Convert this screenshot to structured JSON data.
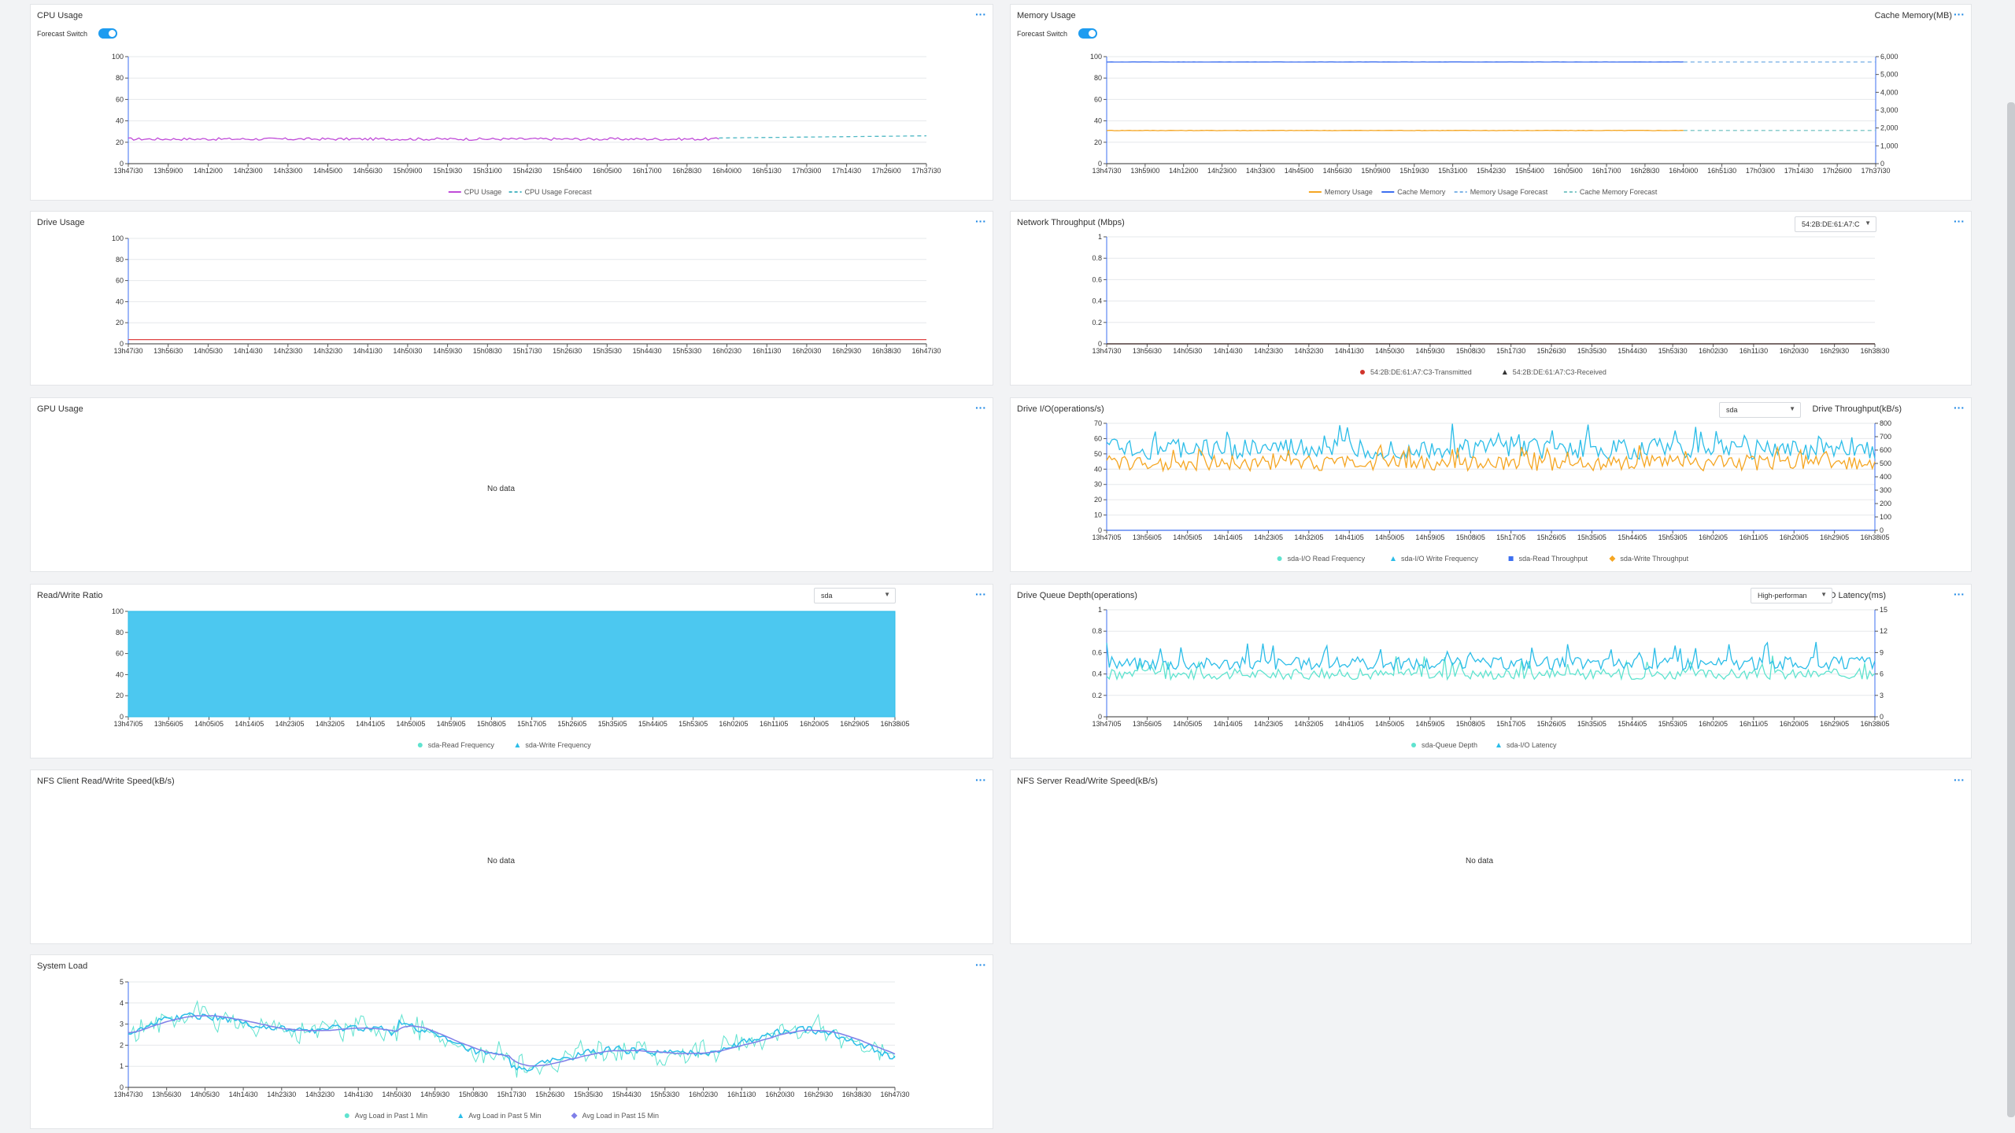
{
  "panels": {
    "cpu": {
      "title": "CPU Usage",
      "switch_label": "Forecast Switch",
      "legend": [
        "CPU Usage",
        "CPU Usage Forecast"
      ],
      "colors": [
        "#c04bd8",
        "#4fb8c4"
      ]
    },
    "memory": {
      "title": "Memory Usage",
      "switch_label": "Forecast Switch",
      "right_axis_title": "Cache Memory(MB)",
      "legend": [
        "Memory Usage",
        "Cache Memory",
        "Memory Usage Forecast",
        "Cache Memory Forecast"
      ],
      "colors": [
        "#f5a623",
        "#3d6ff0",
        "#7fb5e8",
        "#7fc7c7"
      ]
    },
    "drive": {
      "title": "Drive Usage"
    },
    "network": {
      "title": "Network Throughput (Mbps)",
      "select": "54:2B:DE:61:A7:C",
      "legend": [
        "54:2B:DE:61:A7:C3-Transmitted",
        "54:2B:DE:61:A7:C3-Received"
      ]
    },
    "gpu": {
      "title": "GPU Usage",
      "nodata": "No data"
    },
    "driveio": {
      "title": "Drive I/O(operations/s)",
      "select": "sda",
      "right_axis_title": "Drive Throughput(kB/s)",
      "legend": [
        "sda-I/O Read Frequency",
        "sda-I/O Write Frequency",
        "sda-Read Throughput",
        "sda-Write Throughput"
      ]
    },
    "rw": {
      "title": "Read/Write Ratio",
      "select": "sda",
      "legend": [
        "sda-Read Frequency",
        "sda-Write Frequency"
      ]
    },
    "queue": {
      "title": "Drive Queue Depth(operations)",
      "select": "High-performan",
      "right_axis_title": "I/O Latency(ms)",
      "legend": [
        "sda-Queue Depth",
        "sda-I/O Latency"
      ]
    },
    "nfsclient": {
      "title": "NFS Client Read/Write Speed(kB/s)",
      "nodata": "No data"
    },
    "nfsserver": {
      "title": "NFS Server Read/Write Speed(kB/s)",
      "nodata": "No data"
    },
    "sysload": {
      "title": "System Load",
      "legend": [
        "Avg Load in Past 1 Min",
        "Avg Load in Past 5 Min",
        "Avg Load in Past 15 Min"
      ]
    }
  },
  "more_label": "···",
  "chart_data": [
    {
      "id": "cpu",
      "type": "line",
      "xlabels": [
        "13h47i30",
        "13h59i00",
        "14h12i00",
        "14h23i00",
        "14h33i00",
        "14h45i00",
        "14h56i30",
        "15h09i00",
        "15h19i30",
        "15h31i00",
        "15h42i30",
        "15h54i00",
        "16h05i00",
        "16h17i00",
        "16h28i30",
        "16h40i00",
        "16h51i30",
        "17h03i00",
        "17h14i30",
        "17h26i00",
        "17h37i30"
      ],
      "yticks": [
        "0",
        "20",
        "40",
        "60",
        "80",
        "100"
      ],
      "ylim": [
        0,
        100
      ],
      "series": [
        {
          "name": "CPU Usage",
          "color": "#c04bd8",
          "level": 23,
          "noise": 1.2,
          "from": 0,
          "to": 0.74
        },
        {
          "name": "CPU Usage Forecast",
          "color": "#4fb8c4",
          "dash": true,
          "level": 24,
          "end": 26,
          "from": 0.74,
          "to": 1
        }
      ]
    },
    {
      "id": "memory",
      "type": "line",
      "xlabels": [
        "13h47i30",
        "13h59i00",
        "14h12i00",
        "14h23i00",
        "14h33i00",
        "14h45i00",
        "14h56i30",
        "15h09i00",
        "15h19i30",
        "15h31i00",
        "15h42i30",
        "15h54i00",
        "16h05i00",
        "16h17i00",
        "16h28i30",
        "16h40i00",
        "16h51i30",
        "17h03i00",
        "17h14i30",
        "17h26i00",
        "17h37i30"
      ],
      "yticks": [
        "0",
        "20",
        "40",
        "60",
        "80",
        "100"
      ],
      "ylim": [
        0,
        100
      ],
      "y2ticks": [
        "0",
        "1,000",
        "2,000",
        "3,000",
        "4,000",
        "5,000",
        "6,000"
      ],
      "y2lim": [
        0,
        6000
      ],
      "series": [
        {
          "name": "Memory Usage",
          "color": "#f5a623",
          "level": 31,
          "noise": 0.2,
          "from": 0,
          "to": 0.75
        },
        {
          "name": "Cache Memory",
          "color": "#3d6ff0",
          "level": 95,
          "noise": 0.1,
          "from": 0,
          "to": 0.75
        },
        {
          "name": "Memory Usage Forecast",
          "color": "#7fb5e8",
          "dash": true,
          "level": 95,
          "from": 0.75,
          "to": 1
        },
        {
          "name": "Cache Memory Forecast",
          "color": "#7fc7c7",
          "dash": true,
          "level": 31,
          "from": 0.75,
          "to": 1
        }
      ]
    },
    {
      "id": "drive",
      "type": "line",
      "xlabels": [
        "13h47i30",
        "13h56i30",
        "14h05i30",
        "14h14i30",
        "14h23i30",
        "14h32i30",
        "14h41i30",
        "14h50i30",
        "14h59i30",
        "15h08i30",
        "15h17i30",
        "15h26i30",
        "15h35i30",
        "15h44i30",
        "15h53i30",
        "16h02i30",
        "16h11i30",
        "16h20i30",
        "16h29i30",
        "16h38i30",
        "16h47i30"
      ],
      "yticks": [
        "0",
        "20",
        "40",
        "60",
        "80",
        "100"
      ],
      "ylim": [
        0,
        100
      ],
      "series": [
        {
          "name": "Drive Usage",
          "color": "#e04444",
          "level": 4,
          "noise": 0,
          "from": 0,
          "to": 1
        }
      ]
    },
    {
      "id": "network",
      "type": "line",
      "xlabels": [
        "13h47i30",
        "13h56i30",
        "14h05i30",
        "14h14i30",
        "14h23i30",
        "14h32i30",
        "14h41i30",
        "14h50i30",
        "14h59i30",
        "15h08i30",
        "15h17i30",
        "15h26i30",
        "15h35i30",
        "15h44i30",
        "15h53i30",
        "16h02i30",
        "16h11i30",
        "16h20i30",
        "16h29i30",
        "16h38i30"
      ],
      "yticks": [
        "0",
        "0.2",
        "0.4",
        "0.6",
        "0.8",
        "1"
      ],
      "ylim": [
        0,
        1
      ],
      "series": [
        {
          "name": "54:2B:DE:61:A7:C3-Transmitted",
          "color": "#d0342c",
          "level": 0,
          "noise": 0,
          "from": 0,
          "to": 1
        },
        {
          "name": "54:2B:DE:61:A7:C3-Received",
          "color": "#333333",
          "level": 0,
          "noise": 0,
          "from": 0,
          "to": 1
        }
      ]
    },
    {
      "id": "driveio",
      "type": "line",
      "xlabels": [
        "13h47i05",
        "13h56i05",
        "14h05i05",
        "14h14i05",
        "14h23i05",
        "14h32i05",
        "14h41i05",
        "14h50i05",
        "14h59i05",
        "15h08i05",
        "15h17i05",
        "15h26i05",
        "15h35i05",
        "15h44i05",
        "15h53i05",
        "16h02i05",
        "16h11i05",
        "16h20i05",
        "16h29i05",
        "16h38i05"
      ],
      "yticks": [
        "0",
        "10",
        "20",
        "30",
        "40",
        "50",
        "60",
        "70"
      ],
      "ylim": [
        0,
        70
      ],
      "y2ticks": [
        "0",
        "100",
        "200",
        "300",
        "400",
        "500",
        "600",
        "700",
        "800"
      ],
      "y2lim": [
        0,
        800
      ],
      "series": [
        {
          "name": "sda-I/O Read Frequency",
          "color": "#2bbde8",
          "level": 53,
          "noise": 7,
          "from": 0,
          "to": 1
        },
        {
          "name": "sda-Write Throughput",
          "color": "#f5a623",
          "level": 44,
          "noise": 5,
          "from": 0,
          "to": 1
        },
        {
          "name": "sda-Read Throughput",
          "color": "#3d6ff0",
          "level": 0,
          "noise": 0,
          "from": 0,
          "to": 1
        }
      ]
    },
    {
      "id": "rw",
      "type": "area",
      "xlabels": [
        "13h47i05",
        "13h56i05",
        "14h05i05",
        "14h14i05",
        "14h23i05",
        "14h32i05",
        "14h41i05",
        "14h50i05",
        "14h59i05",
        "15h08i05",
        "15h17i05",
        "15h26i05",
        "15h35i05",
        "15h44i05",
        "15h53i05",
        "16h02i05",
        "16h11i05",
        "16h20i05",
        "16h29i05",
        "16h38i05"
      ],
      "yticks": [
        "0",
        "20",
        "40",
        "60",
        "80",
        "100"
      ],
      "ylim": [
        0,
        100
      ],
      "series": [
        {
          "name": "sda-Read Frequency",
          "color": "#4cc8f0",
          "level": 100,
          "noise": 0,
          "from": 0,
          "to": 1
        }
      ]
    },
    {
      "id": "queue",
      "type": "line",
      "xlabels": [
        "13h47i05",
        "13h56i05",
        "14h05i05",
        "14h14i05",
        "14h23i05",
        "14h32i05",
        "14h41i05",
        "14h50i05",
        "14h59i05",
        "15h08i05",
        "15h17i05",
        "15h26i05",
        "15h35i05",
        "15h44i05",
        "15h53i05",
        "16h02i05",
        "16h11i05",
        "16h20i05",
        "16h29i05",
        "16h38i05"
      ],
      "yticks": [
        "0",
        "0.2",
        "0.4",
        "0.6",
        "0.8",
        "1"
      ],
      "ylim": [
        0,
        1
      ],
      "y2ticks": [
        "0",
        "3",
        "6",
        "9",
        "12",
        "15"
      ],
      "y2lim": [
        0,
        15
      ],
      "series": [
        {
          "name": "sda-Queue Depth",
          "color": "#5fe3cf",
          "level": 0.4,
          "noise": 0.05,
          "from": 0,
          "to": 1
        },
        {
          "name": "sda-I/O Latency",
          "color": "#2bbde8",
          "level": 0.5,
          "noise": 0.06,
          "from": 0,
          "to": 1
        }
      ]
    },
    {
      "id": "sysload",
      "type": "line",
      "xlabels": [
        "13h47i30",
        "13h56i30",
        "14h05i30",
        "14h14i30",
        "14h23i30",
        "14h32i30",
        "14h41i30",
        "14h50i30",
        "14h59i30",
        "15h08i30",
        "15h17i30",
        "15h26i30",
        "15h35i30",
        "15h44i30",
        "15h53i30",
        "16h02i30",
        "16h11i30",
        "16h20i30",
        "16h29i30",
        "16h38i30",
        "16h47i30"
      ],
      "yticks": [
        "0",
        "1",
        "2",
        "3",
        "4",
        "5"
      ],
      "ylim": [
        0,
        5
      ],
      "series": [
        {
          "name": "Avg Load in Past 1 Min",
          "color": "#5fe3cf",
          "noise": 0.9
        },
        {
          "name": "Avg Load in Past 5 Min",
          "color": "#2bbde8",
          "noise": 0.35
        },
        {
          "name": "Avg Load in Past 15 Min",
          "color": "#7f7fe8",
          "noise": 0.1
        }
      ]
    }
  ]
}
